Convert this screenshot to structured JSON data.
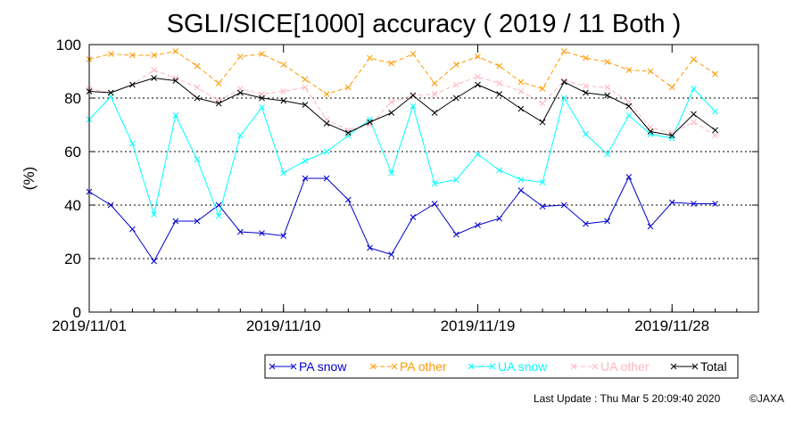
{
  "chart_data": {
    "type": "line",
    "title": "SGLI/SICE[1000] accuracy ( 2019 / 11 Both )",
    "xlabel": "",
    "ylabel": "(%)",
    "ylim": [
      0,
      100
    ],
    "yticks": [
      0,
      20,
      40,
      60,
      80,
      100
    ],
    "xlim": [
      "2019-11-01",
      "2019-12-02"
    ],
    "xtick_labels": [
      {
        "date": "2019-11-01",
        "label": "2019/11/01"
      },
      {
        "date": "2019-11-10",
        "label": "2019/11/10"
      },
      {
        "date": "2019-11-19",
        "label": "2019/11/19"
      },
      {
        "date": "2019-11-28",
        "label": "2019/11/28"
      }
    ],
    "grid": {
      "horizontal_dotted_at": [
        20,
        40,
        60,
        80
      ]
    },
    "legend_placement": "bottom-right",
    "x": [
      "2019-11-01",
      "2019-11-02",
      "2019-11-03",
      "2019-11-04",
      "2019-11-05",
      "2019-11-06",
      "2019-11-07",
      "2019-11-08",
      "2019-11-09",
      "2019-11-10",
      "2019-11-11",
      "2019-11-12",
      "2019-11-13",
      "2019-11-14",
      "2019-11-15",
      "2019-11-16",
      "2019-11-17",
      "2019-11-18",
      "2019-11-19",
      "2019-11-20",
      "2019-11-21",
      "2019-11-22",
      "2019-11-23",
      "2019-11-24",
      "2019-11-25",
      "2019-11-26",
      "2019-11-27",
      "2019-11-28",
      "2019-11-29",
      "2019-11-30"
    ],
    "series": [
      {
        "name": "PA snow",
        "color": "#0000cc",
        "dash": "solid",
        "values": [
          45,
          40,
          31,
          19,
          34,
          34,
          40,
          30,
          29.5,
          28.5,
          50,
          50,
          42,
          24,
          21.5,
          35.5,
          40.5,
          29,
          32.5,
          35,
          45.5,
          39.5,
          40,
          33,
          34,
          50.5,
          32,
          41,
          40.5,
          40.5
        ]
      },
      {
        "name": "PA other",
        "color": "#ff9900",
        "dash": "dashed",
        "values": [
          94.5,
          96.5,
          96,
          96,
          97.5,
          92,
          85.5,
          95.5,
          96.5,
          92.5,
          87,
          81.5,
          84,
          95,
          93,
          96.5,
          85.5,
          92.5,
          95.5,
          92,
          86,
          83.5,
          97.5,
          95,
          93.5,
          90.5,
          90,
          84,
          94.5,
          89
        ]
      },
      {
        "name": "UA snow",
        "color": "#00ffff",
        "dash": "solid",
        "values": [
          72,
          80.5,
          63,
          36.5,
          73.5,
          57,
          36,
          66,
          76.5,
          52,
          56.5,
          60,
          66,
          72,
          52,
          77,
          48,
          49.5,
          59,
          53,
          49.5,
          48.5,
          80,
          66.5,
          59,
          73.5,
          66.5,
          65,
          83.5,
          75
        ]
      },
      {
        "name": "UA other",
        "color": "#ffb6c1",
        "dash": "dashed",
        "values": [
          83.5,
          82,
          85,
          90.5,
          87.5,
          84,
          79,
          83.5,
          81.5,
          82.5,
          84,
          72,
          68,
          70,
          78.5,
          81,
          81.5,
          85,
          88,
          85.5,
          82.5,
          78,
          86.5,
          84.5,
          84,
          78.5,
          69,
          67,
          71,
          66
        ]
      },
      {
        "name": "Total",
        "color": "#000000",
        "dash": "solid",
        "values": [
          82.5,
          82,
          85,
          87.5,
          86.5,
          80,
          78,
          82,
          80,
          79,
          77.5,
          70.5,
          67,
          71,
          74.5,
          81,
          74.5,
          80,
          85,
          81.5,
          76,
          71,
          86,
          82,
          81,
          77,
          67.5,
          66,
          74,
          68
        ]
      }
    ]
  },
  "footer": {
    "last_update": "Last Update : Thu Mar  5 20:09:40 2020",
    "copyright": "©JAXA"
  }
}
